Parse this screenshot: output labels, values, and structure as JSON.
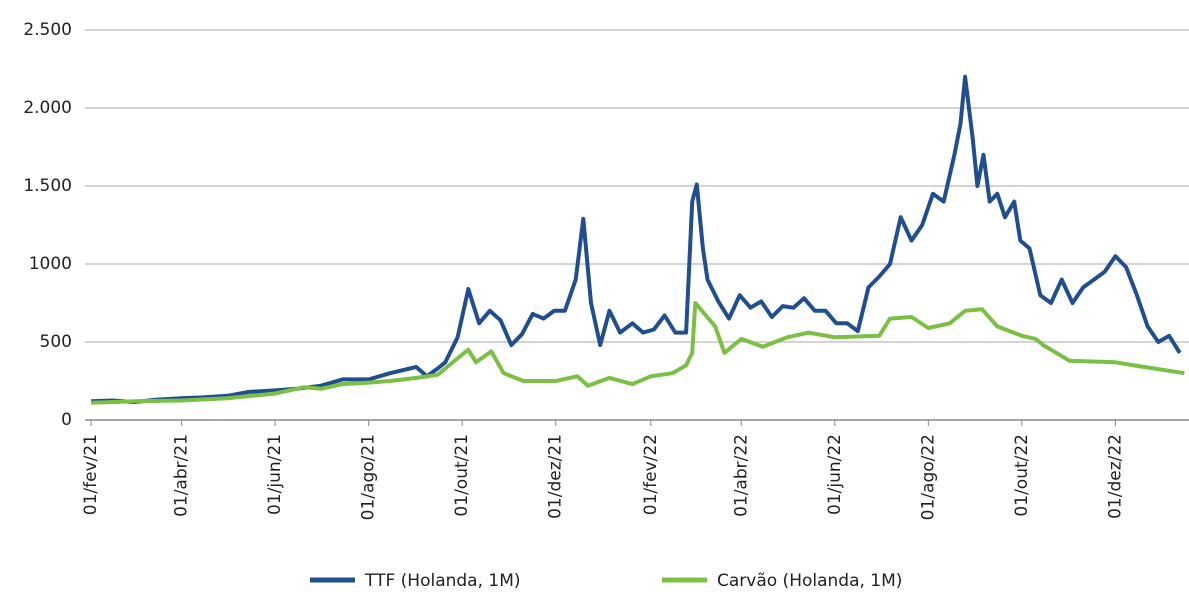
{
  "chart_data": {
    "type": "line",
    "xlim": [
      "2021-01-28",
      "2023-01-18"
    ],
    "xticks": [
      {
        "value": "2021-02-01",
        "label": "01/fev/21"
      },
      {
        "value": "2021-04-01",
        "label": "01/abr/21"
      },
      {
        "value": "2021-06-01",
        "label": "01/jun/21"
      },
      {
        "value": "2021-08-01",
        "label": "01/ago/21"
      },
      {
        "value": "2021-10-01",
        "label": "01/out/21"
      },
      {
        "value": "2021-12-01",
        "label": "01/dez/21"
      },
      {
        "value": "2022-02-01",
        "label": "01/fev/22"
      },
      {
        "value": "2022-04-01",
        "label": "01/abr/22"
      },
      {
        "value": "2022-06-01",
        "label": "01/jun/22"
      },
      {
        "value": "2022-08-01",
        "label": "01/ago/22"
      },
      {
        "value": "2022-10-01",
        "label": "01/out/22"
      },
      {
        "value": "2022-12-01",
        "label": "01/dez/22"
      }
    ],
    "ylim": [
      0,
      2500
    ],
    "yticks": [
      0,
      500,
      1000,
      {
        "value": 1500,
        "label": "1.500"
      },
      {
        "value": 2000,
        "label": "2.000"
      },
      {
        "value": 2500,
        "label": "2.500"
      }
    ],
    "grid": true,
    "series": [
      {
        "name": "TTF (Holanda, 1M)",
        "color": "#1f4e91",
        "x": [
          "2021-02-01",
          "2021-02-15",
          "2021-03-01",
          "2021-03-15",
          "2021-04-01",
          "2021-04-15",
          "2021-05-01",
          "2021-05-15",
          "2021-06-01",
          "2021-06-15",
          "2021-07-01",
          "2021-07-15",
          "2021-08-01",
          "2021-08-15",
          "2021-09-01",
          "2021-09-08",
          "2021-09-15",
          "2021-09-20",
          "2021-09-28",
          "2021-10-05",
          "2021-10-12",
          "2021-10-19",
          "2021-10-26",
          "2021-11-02",
          "2021-11-09",
          "2021-11-16",
          "2021-11-23",
          "2021-11-30",
          "2021-12-07",
          "2021-12-14",
          "2021-12-19",
          "2021-12-24",
          "2021-12-30",
          "2022-01-05",
          "2022-01-12",
          "2022-01-20",
          "2022-01-27",
          "2022-02-03",
          "2022-02-10",
          "2022-02-17",
          "2022-02-24",
          "2022-02-28",
          "2022-03-03",
          "2022-03-07",
          "2022-03-10",
          "2022-03-17",
          "2022-03-24",
          "2022-03-31",
          "2022-04-07",
          "2022-04-14",
          "2022-04-21",
          "2022-04-28",
          "2022-05-05",
          "2022-05-12",
          "2022-05-19",
          "2022-05-26",
          "2022-06-02",
          "2022-06-09",
          "2022-06-16",
          "2022-06-23",
          "2022-06-30",
          "2022-07-07",
          "2022-07-14",
          "2022-07-21",
          "2022-07-28",
          "2022-08-04",
          "2022-08-11",
          "2022-08-18",
          "2022-08-22",
          "2022-08-25",
          "2022-08-30",
          "2022-09-02",
          "2022-09-06",
          "2022-09-10",
          "2022-09-15",
          "2022-09-20",
          "2022-09-26",
          "2022-09-30",
          "2022-10-06",
          "2022-10-13",
          "2022-10-20",
          "2022-10-27",
          "2022-11-03",
          "2022-11-10",
          "2022-11-17",
          "2022-11-24",
          "2022-12-01",
          "2022-12-08",
          "2022-12-15",
          "2022-12-22",
          "2022-12-29",
          "2023-01-05",
          "2023-01-12"
        ],
        "values": [
          120,
          125,
          115,
          130,
          140,
          145,
          155,
          180,
          190,
          200,
          220,
          260,
          260,
          300,
          340,
          280,
          330,
          370,
          530,
          840,
          620,
          700,
          640,
          480,
          550,
          680,
          650,
          700,
          700,
          900,
          1290,
          750,
          480,
          700,
          560,
          620,
          560,
          580,
          670,
          560,
          560,
          1400,
          1510,
          1100,
          900,
          760,
          650,
          800,
          720,
          760,
          660,
          730,
          720,
          780,
          700,
          700,
          620,
          620,
          570,
          850,
          920,
          1000,
          1300,
          1150,
          1250,
          1450,
          1400,
          1700,
          1900,
          2200,
          1800,
          1500,
          1700,
          1400,
          1450,
          1300,
          1400,
          1150,
          1100,
          800,
          750,
          900,
          750,
          850,
          900,
          950,
          1050,
          980,
          800,
          600,
          500,
          540,
          430
        ]
      },
      {
        "name": "Carvão (Holanda, 1M)",
        "color": "#7ac143",
        "x": [
          "2021-02-01",
          "2021-03-01",
          "2021-04-01",
          "2021-05-01",
          "2021-06-01",
          "2021-06-20",
          "2021-07-01",
          "2021-07-15",
          "2021-08-01",
          "2021-08-15",
          "2021-09-01",
          "2021-09-15",
          "2021-10-01",
          "2021-10-05",
          "2021-10-10",
          "2021-10-20",
          "2021-10-28",
          "2021-11-10",
          "2021-12-01",
          "2021-12-15",
          "2021-12-22",
          "2022-01-05",
          "2022-01-20",
          "2022-02-01",
          "2022-02-15",
          "2022-02-24",
          "2022-02-28",
          "2022-03-02",
          "2022-03-15",
          "2022-03-21",
          "2022-04-01",
          "2022-04-15",
          "2022-05-01",
          "2022-05-15",
          "2022-06-01",
          "2022-06-30",
          "2022-07-07",
          "2022-07-21",
          "2022-08-01",
          "2022-08-15",
          "2022-08-25",
          "2022-09-05",
          "2022-09-15",
          "2022-10-01",
          "2022-10-10",
          "2022-10-15",
          "2022-11-01",
          "2022-12-01",
          "2022-12-20",
          "2023-01-15"
        ],
        "values": [
          110,
          120,
          125,
          140,
          170,
          210,
          200,
          230,
          240,
          250,
          270,
          290,
          420,
          450,
          370,
          440,
          300,
          250,
          250,
          280,
          220,
          270,
          230,
          280,
          300,
          350,
          430,
          750,
          600,
          430,
          520,
          470,
          530,
          560,
          530,
          540,
          650,
          660,
          590,
          620,
          700,
          710,
          600,
          540,
          520,
          480,
          380,
          370,
          340,
          300
        ]
      }
    ]
  }
}
